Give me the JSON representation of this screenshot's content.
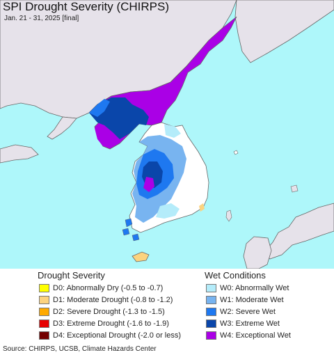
{
  "map": {
    "title": "SPI Drought Severity (CHIRPS)",
    "subtitle": "Jan. 21 - 31, 2025 [final]",
    "colors": {
      "sea": "#aef7fa",
      "land_outside": "#e6e2ea",
      "normal": "#ffffff",
      "border": "#666666"
    }
  },
  "legend": {
    "drought": {
      "heading": "Drought Severity",
      "items": [
        {
          "label": "D0: Abnormally Dry (-0.5 to -0.7)",
          "color": "#ffff00"
        },
        {
          "label": "D1: Moderate Drought (-0.8 to -1.2)",
          "color": "#fcd37f"
        },
        {
          "label": "D2: Severe Drought (-1.3 to -1.5)",
          "color": "#ffaa00"
        },
        {
          "label": "D3: Extreme Drought (-1.6 to -1.9)",
          "color": "#e60000"
        },
        {
          "label": "D4: Exceptional Drought (-2.0 or less)",
          "color": "#730000"
        }
      ]
    },
    "wet": {
      "heading": "Wet Conditions",
      "items": [
        {
          "label": "W0: Abnormally Wet",
          "color": "#b4ecfa"
        },
        {
          "label": "W1: Moderate Wet",
          "color": "#78b4f0"
        },
        {
          "label": "W2: Severe Wet",
          "color": "#1e78f0"
        },
        {
          "label": "W3: Extreme Wet",
          "color": "#0a46aa"
        },
        {
          "label": "W4: Exceptional Wet",
          "color": "#aa00e6"
        }
      ]
    }
  },
  "source": "Source: CHIRPS, UCSB, Climate Hazards Center"
}
